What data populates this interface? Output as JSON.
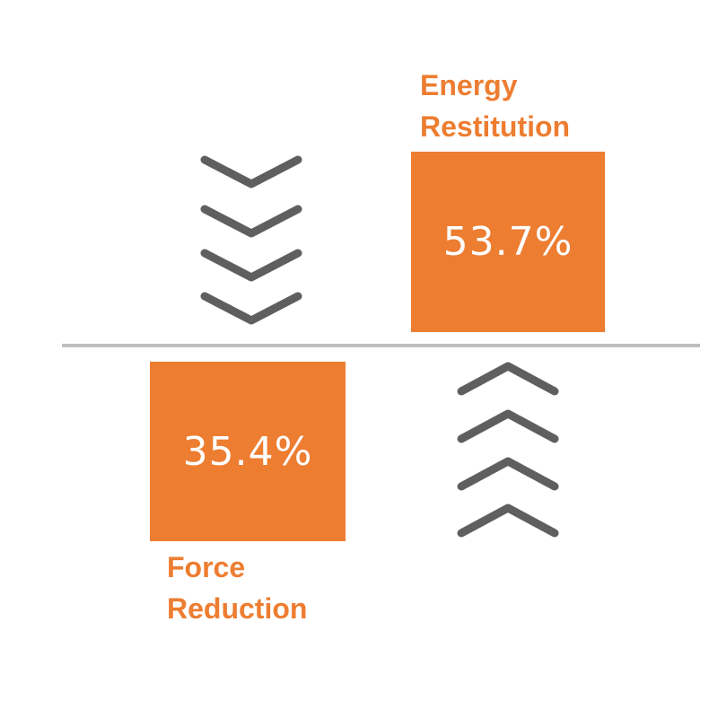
{
  "energy_restitution": {
    "label_line1": "Energy",
    "label_line2": "Restitution",
    "value": "53.7%"
  },
  "force_reduction": {
    "label_line1": "Force",
    "label_line2": "Reduction",
    "value": "35.4%"
  },
  "colors": {
    "accent": "#ed7d31",
    "arrow": "#5f5f5f",
    "divider": "#bfbfbf",
    "value_text": "#ffffff"
  },
  "icons": {
    "down": "chevron-down-icon",
    "up": "chevron-up-icon"
  }
}
